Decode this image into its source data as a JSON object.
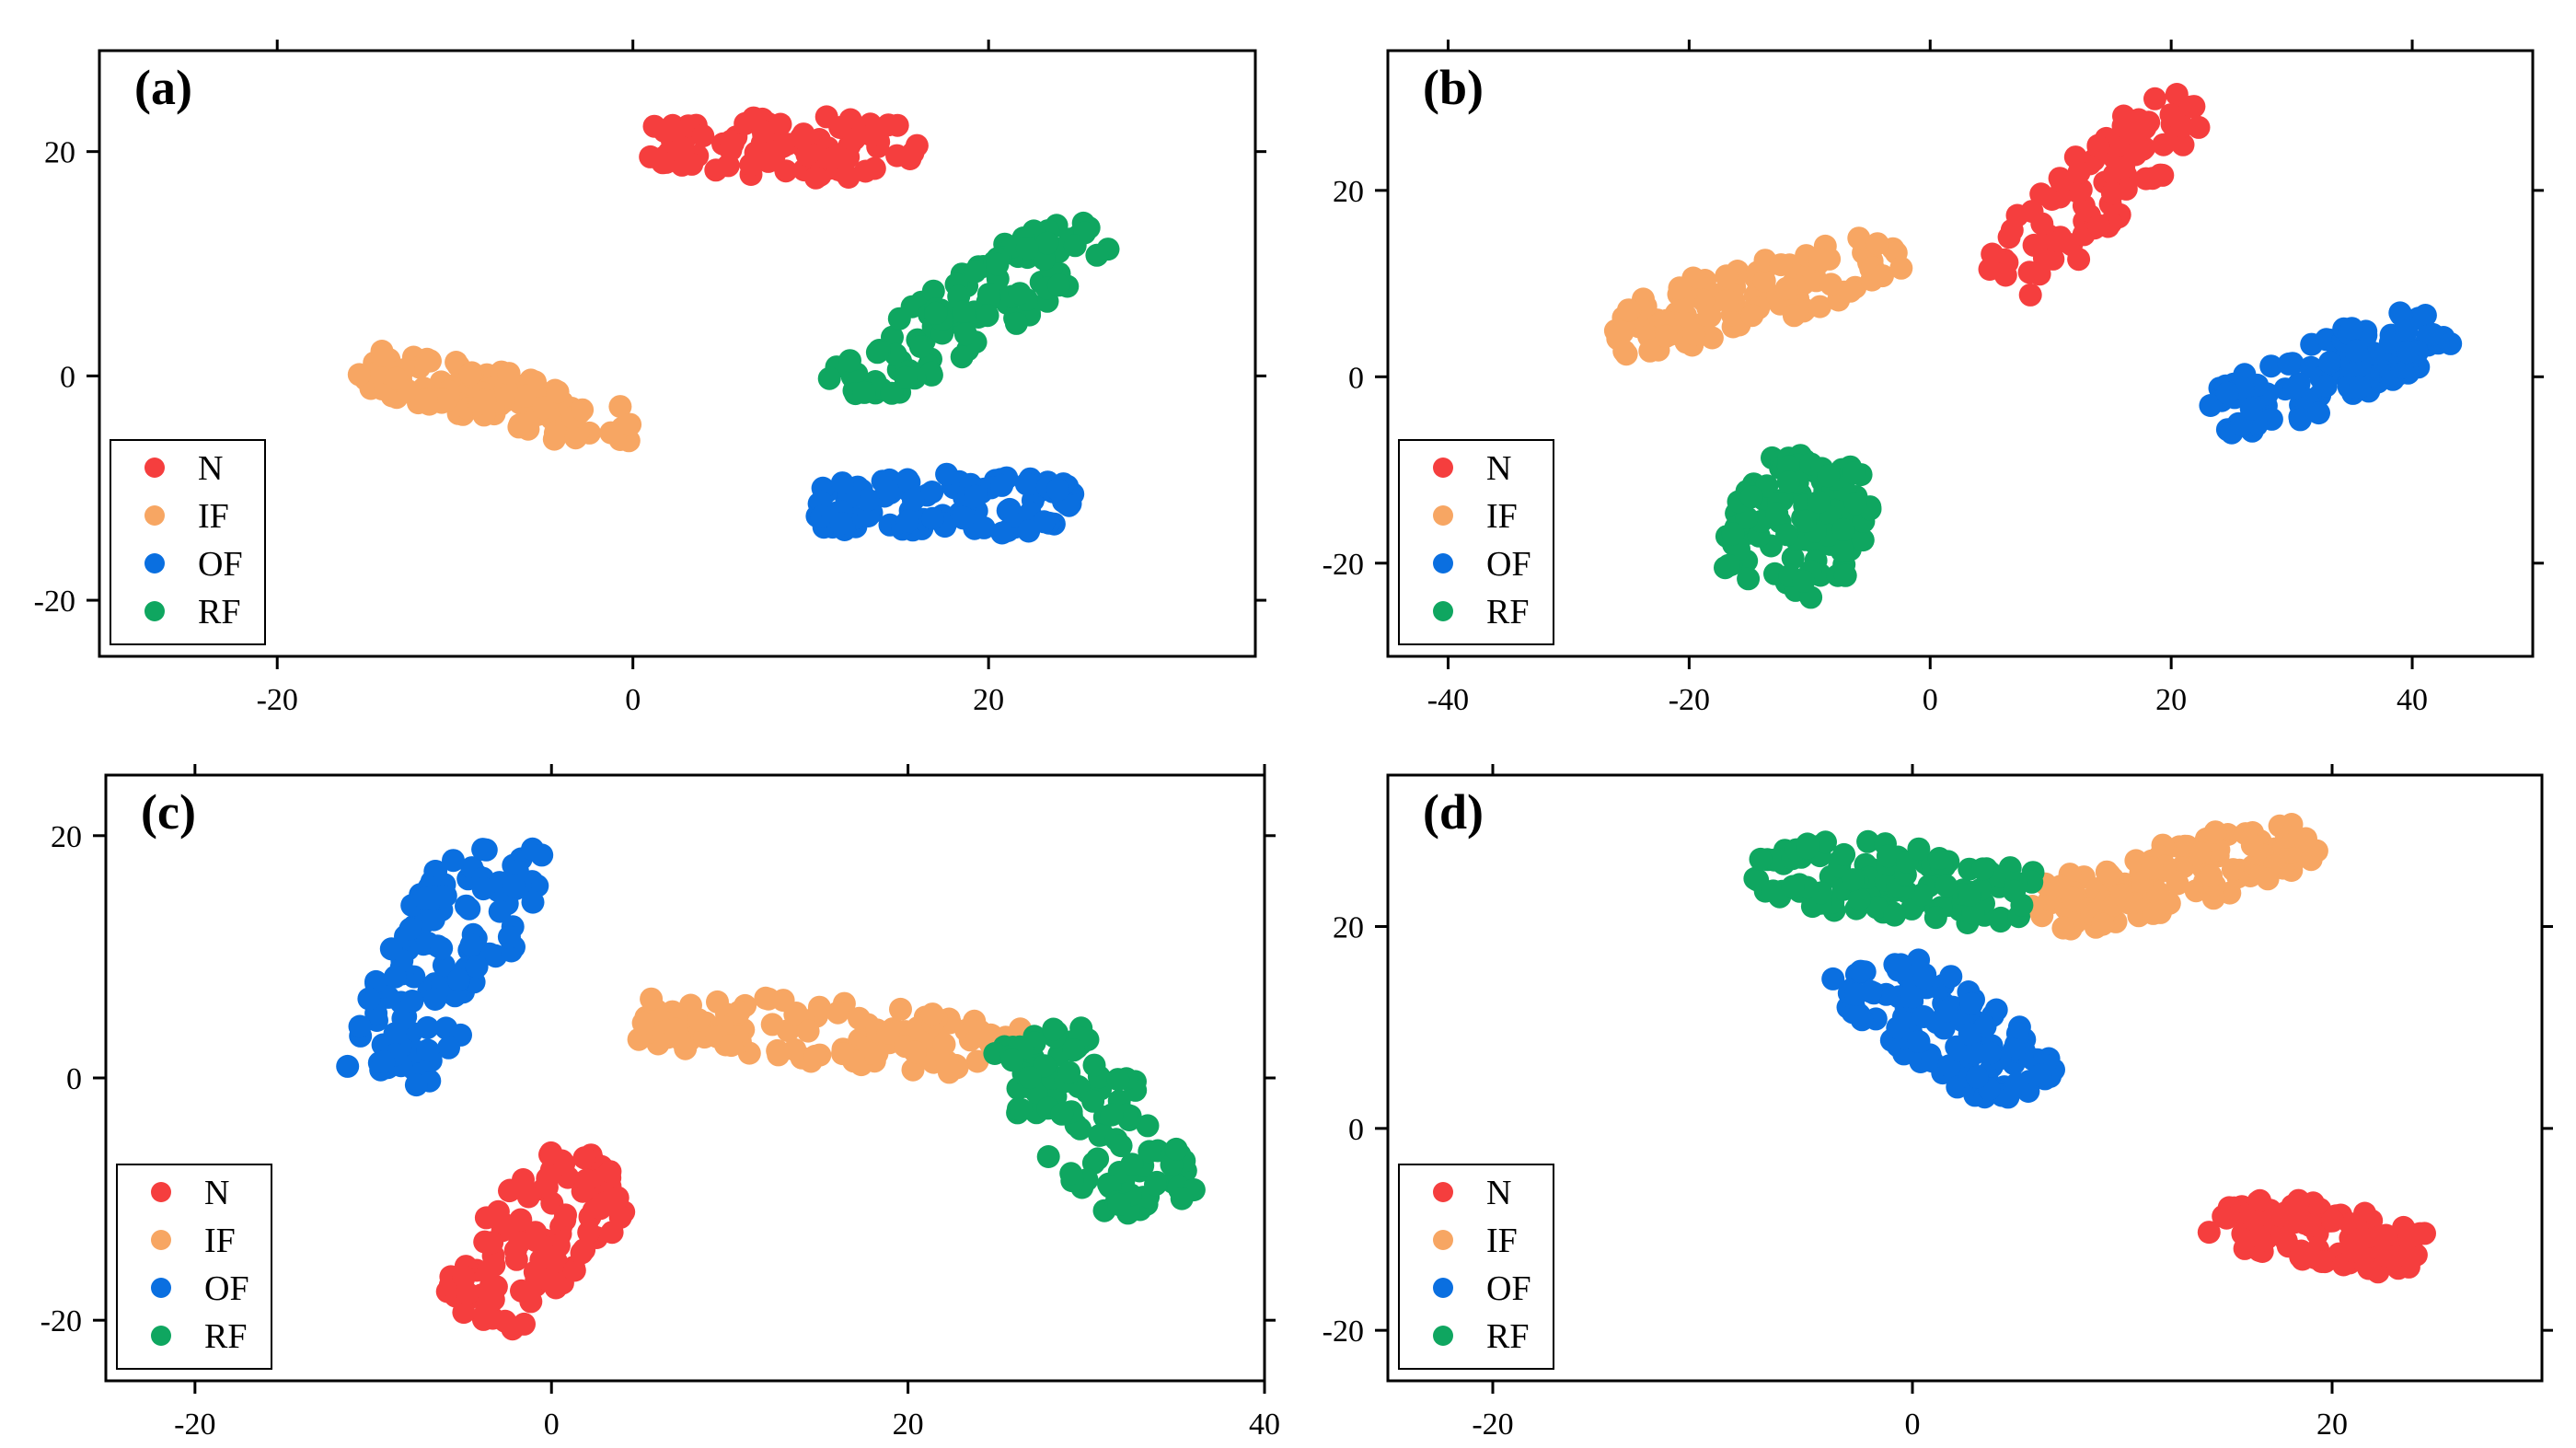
{
  "colors": {
    "N": "#F53E3E",
    "IF": "#F7A663",
    "OF": "#0A6FE0",
    "RF": "#0FA660"
  },
  "chart_data": [
    {
      "type": "scatter",
      "panel_label": "(a)",
      "xlim": [
        -30,
        35
      ],
      "ylim": [
        -25,
        29
      ],
      "xticks": [
        -20,
        0,
        20
      ],
      "xtick_labels": [
        "-20",
        "0",
        "20"
      ],
      "yticks": [
        -20,
        0,
        20
      ],
      "ytick_labels": [
        "-20",
        "0",
        "20"
      ],
      "legend": {
        "position": "bottom-left",
        "entries": [
          "N",
          "IF",
          "OF",
          "RF"
        ]
      },
      "clusters": [
        {
          "name": "N",
          "count": 95,
          "seed": 11,
          "center": [
            8.5,
            20.5
          ],
          "axis": [
            1,
            -0.05
          ],
          "half_len": 7.5,
          "half_wid": 2.8
        },
        {
          "name": "IF",
          "count": 110,
          "seed": 12,
          "center": [
            -7.5,
            -2
          ],
          "axis": [
            1,
            -0.4
          ],
          "half_len": 8.2,
          "half_wid": 2.4
        },
        {
          "name": "OF",
          "count": 120,
          "seed": 13,
          "center": [
            17.5,
            -11.5
          ],
          "axis": [
            1,
            0
          ],
          "half_len": 7.3,
          "half_wid": 2.8
        },
        {
          "name": "RF",
          "count": 110,
          "seed": 14,
          "center": [
            19,
            6
          ],
          "axis": [
            1,
            1.05
          ],
          "half_len": 10,
          "half_wid": 2.8
        }
      ]
    },
    {
      "type": "scatter",
      "panel_label": "(b)",
      "xlim": [
        -45,
        50
      ],
      "ylim": [
        -30,
        35
      ],
      "xticks": [
        -40,
        -20,
        0,
        20,
        40
      ],
      "xtick_labels": [
        "-40",
        "-20",
        "0",
        "20",
        "40"
      ],
      "yticks": [
        -20,
        0,
        20
      ],
      "ytick_labels": [
        "-20",
        "0",
        "20"
      ],
      "legend": {
        "position": "bottom-left",
        "entries": [
          "N",
          "IF",
          "OF",
          "RF"
        ]
      },
      "clusters": [
        {
          "name": "N",
          "count": 85,
          "seed": 21,
          "center": [
            13.5,
            20
          ],
          "axis": [
            0.75,
            1
          ],
          "half_len": 13,
          "half_wid": 3.8
        },
        {
          "name": "IF",
          "count": 110,
          "seed": 22,
          "center": [
            -14.5,
            9
          ],
          "axis": [
            1,
            0.4
          ],
          "half_len": 12.5,
          "half_wid": 3.6
        },
        {
          "name": "OF",
          "count": 110,
          "seed": 23,
          "center": [
            33,
            0.5
          ],
          "axis": [
            1,
            0.55
          ],
          "half_len": 10.5,
          "half_wid": 3.6
        },
        {
          "name": "RF",
          "count": 100,
          "seed": 24,
          "center": [
            -11,
            -16
          ],
          "axis": [
            0.25,
            1
          ],
          "half_len": 7.5,
          "half_wid": 6
        }
      ]
    },
    {
      "type": "scatter",
      "panel_label": "(c)",
      "xlim": [
        -25,
        40
      ],
      "ylim": [
        -25,
        25
      ],
      "xticks": [
        -20,
        0,
        20,
        40
      ],
      "xtick_labels": [
        "-20",
        "0",
        "20",
        "40"
      ],
      "yticks": [
        -20,
        0,
        20
      ],
      "ytick_labels": [
        "-20",
        "0",
        "20"
      ],
      "legend": {
        "position": "bottom-left",
        "entries": [
          "N",
          "IF",
          "OF",
          "RF"
        ]
      },
      "clusters": [
        {
          "name": "N",
          "count": 100,
          "seed": 31,
          "center": [
            -0.5,
            -13
          ],
          "axis": [
            0.55,
            1
          ],
          "half_len": 7.8,
          "half_wid": 3.6
        },
        {
          "name": "IF",
          "count": 120,
          "seed": 32,
          "center": [
            16,
            3.5
          ],
          "axis": [
            1,
            -0.12
          ],
          "half_len": 11,
          "half_wid": 2.7
        },
        {
          "name": "OF",
          "count": 120,
          "seed": 33,
          "center": [
            -6,
            9.5
          ],
          "axis": [
            0.35,
            1
          ],
          "half_len": 10.5,
          "half_wid": 3.4
        },
        {
          "name": "RF",
          "count": 115,
          "seed": 34,
          "center": [
            30.5,
            -3.5
          ],
          "axis": [
            0.5,
            -1
          ],
          "half_len": 8,
          "half_wid": 3.8
        }
      ]
    },
    {
      "type": "scatter",
      "panel_label": "(d)",
      "xlim": [
        -25,
        30
      ],
      "ylim": [
        -25,
        35
      ],
      "xticks": [
        -20,
        0,
        20
      ],
      "xtick_labels": [
        "-20",
        "0",
        "20"
      ],
      "yticks": [
        -20,
        0,
        20
      ],
      "ytick_labels": [
        "-20",
        "0",
        "20"
      ],
      "legend": {
        "position": "bottom-left",
        "entries": [
          "N",
          "IF",
          "OF",
          "RF"
        ]
      },
      "clusters": [
        {
          "name": "N",
          "count": 100,
          "seed": 41,
          "center": [
            19.5,
            -10.5
          ],
          "axis": [
            1,
            -0.45
          ],
          "half_len": 5.2,
          "half_wid": 3
        },
        {
          "name": "IF",
          "count": 115,
          "seed": 42,
          "center": [
            12.5,
            25
          ],
          "axis": [
            1,
            0.6
          ],
          "half_len": 7.5,
          "half_wid": 3
        },
        {
          "name": "OF",
          "count": 115,
          "seed": 43,
          "center": [
            1.5,
            10
          ],
          "axis": [
            0.6,
            -1
          ],
          "half_len": 7.5,
          "half_wid": 3.2
        },
        {
          "name": "RF",
          "count": 120,
          "seed": 44,
          "center": [
            -1,
            24.5
          ],
          "axis": [
            1,
            -0.25
          ],
          "half_len": 6.8,
          "half_wid": 3.6
        }
      ]
    }
  ]
}
